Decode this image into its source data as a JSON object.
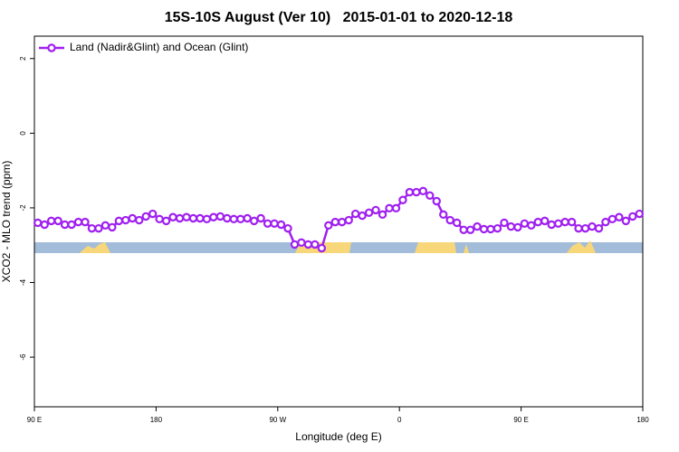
{
  "chart_data": {
    "type": "line",
    "title": "15S-10S August (Ver 10)   2015-01-01 to 2020-12-18",
    "xlabel": "Longitude (deg E)",
    "ylabel": "XCO2 - MLO trend (ppm)",
    "x": [
      92.5,
      97.5,
      102.5,
      107.5,
      112.5,
      117.5,
      122.5,
      127.5,
      132.5,
      137.5,
      142.5,
      147.5,
      152.5,
      157.5,
      162.5,
      167.5,
      172.5,
      177.5,
      182.5,
      187.5,
      192.5,
      197.5,
      202.5,
      207.5,
      212.5,
      217.5,
      222.5,
      227.5,
      232.5,
      237.5,
      242.5,
      247.5,
      252.5,
      257.5,
      262.5,
      267.5,
      272.5,
      277.5,
      282.5,
      287.5,
      292.5,
      297.5,
      302.5,
      307.5,
      312.5,
      317.5,
      322.5,
      327.5,
      332.5,
      337.5,
      342.5,
      347.5,
      352.5,
      357.5,
      362.5,
      367.5,
      372.5,
      377.5,
      382.5,
      387.5,
      392.5,
      397.5,
      402.5,
      407.5,
      412.5,
      417.5,
      422.5,
      427.5,
      432.5,
      437.5,
      442.5,
      447.5,
      452.5,
      457.5,
      462.5,
      467.5,
      472.5,
      477.5,
      482.5,
      487.5,
      492.5,
      497.5,
      502.5,
      507.5,
      512.5,
      517.5,
      522.5,
      527.5,
      532.5,
      537.5
    ],
    "series": [
      {
        "name": "Land (Nadir&Glint) and Ocean (Glint)",
        "color": "#a020f0",
        "values": [
          -2.4,
          -2.45,
          -2.35,
          -2.35,
          -2.45,
          -2.45,
          -2.38,
          -2.38,
          -2.55,
          -2.55,
          -2.47,
          -2.52,
          -2.35,
          -2.33,
          -2.28,
          -2.33,
          -2.23,
          -2.16,
          -2.3,
          -2.35,
          -2.25,
          -2.28,
          -2.25,
          -2.28,
          -2.28,
          -2.3,
          -2.25,
          -2.23,
          -2.28,
          -2.3,
          -2.3,
          -2.28,
          -2.35,
          -2.28,
          -2.42,
          -2.42,
          -2.45,
          -2.55,
          -2.98,
          -2.93,
          -2.98,
          -2.98,
          -3.08,
          -2.47,
          -2.38,
          -2.38,
          -2.33,
          -2.16,
          -2.21,
          -2.13,
          -2.06,
          -2.18,
          -2.01,
          -2.01,
          -1.79,
          -1.58,
          -1.58,
          -1.55,
          -1.67,
          -1.82,
          -2.18,
          -2.33,
          -2.4,
          -2.59,
          -2.59,
          -2.5,
          -2.57,
          -2.57,
          -2.55,
          -2.4,
          -2.5,
          -2.52,
          -2.42,
          -2.47,
          -2.38,
          -2.35,
          -2.45,
          -2.42,
          -2.38,
          -2.38,
          -2.55,
          -2.55,
          -2.5,
          -2.55,
          -2.38,
          -2.3,
          -2.25,
          -2.35,
          -2.23,
          -2.16
        ]
      }
    ],
    "xlim": [
      90,
      540
    ],
    "xticks": [
      {
        "value": 90,
        "label": "90 E"
      },
      180,
      {
        "value": 270,
        "label": "90 W"
      },
      {
        "value": 360,
        "label": "0"
      },
      {
        "value": 450,
        "label": "90 E"
      },
      {
        "value": 540,
        "label": "180"
      }
    ],
    "ylim": [
      -7.33,
      2.6
    ],
    "yticks": [
      2,
      0,
      -2,
      -4,
      -6
    ],
    "legend": "topleft"
  }
}
